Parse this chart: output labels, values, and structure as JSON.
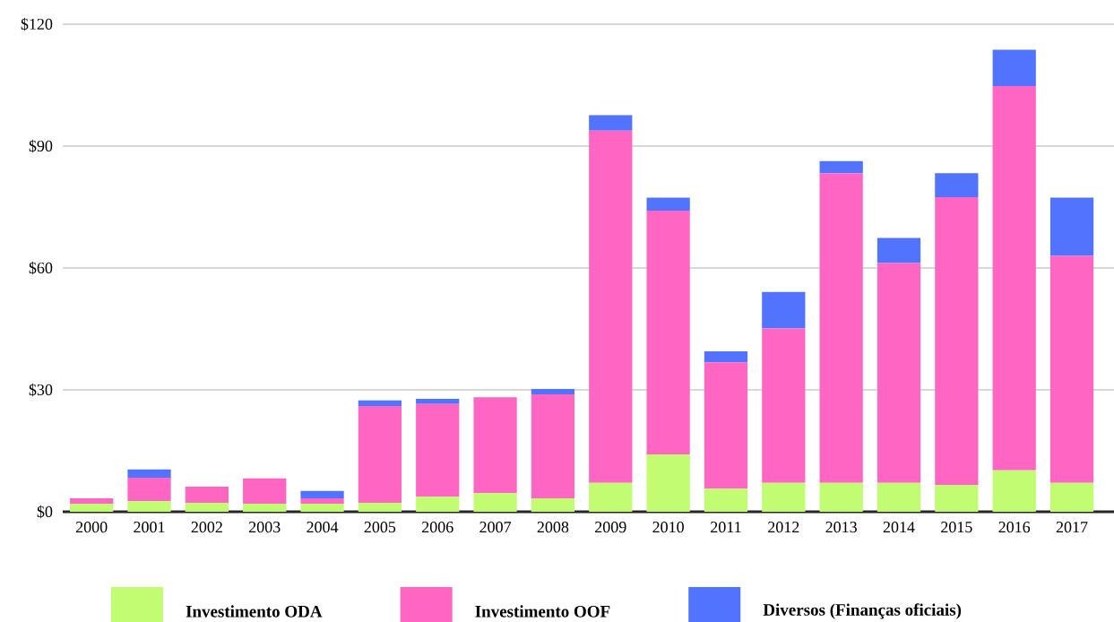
{
  "chart_data": {
    "type": "bar",
    "stacked": true,
    "categories": [
      "2000",
      "2001",
      "2002",
      "2003",
      "2004",
      "2005",
      "2006",
      "2007",
      "2008",
      "2009",
      "2010",
      "2011",
      "2012",
      "2013",
      "2014",
      "2015",
      "2016",
      "2017"
    ],
    "series": [
      {
        "name": "Investimento ODA",
        "color": "#c2fc72",
        "values": [
          2.0,
          2.6,
          2.2,
          2.0,
          2.0,
          2.2,
          3.7,
          4.6,
          3.3,
          7.1,
          14.1,
          5.7,
          7.1,
          7.1,
          7.1,
          6.6,
          10.2,
          7.1
        ]
      },
      {
        "name": "Investimento OOF",
        "color": "#ff66c4",
        "values": [
          1.3,
          5.8,
          4.0,
          6.2,
          1.3,
          23.8,
          22.8,
          23.6,
          25.6,
          86.7,
          60.0,
          31.1,
          38.0,
          76.2,
          54.1,
          70.8,
          94.6,
          55.9
        ]
      },
      {
        "name": "Diversos (Finanças oficiais)",
        "color": "#5273fe",
        "values": [
          0,
          2.0,
          0,
          0,
          1.8,
          1.4,
          1.3,
          0,
          1.3,
          3.8,
          3.2,
          2.7,
          9.0,
          3.0,
          6.2,
          5.9,
          8.9,
          14.3
        ]
      }
    ],
    "ylim": [
      0,
      120
    ],
    "yticks": [
      {
        "value": 0,
        "label": "$0"
      },
      {
        "value": 30,
        "label": "$30"
      },
      {
        "value": 60,
        "label": "$60"
      },
      {
        "value": 90,
        "label": "$90"
      },
      {
        "value": 120,
        "label": "$120"
      }
    ],
    "grid": "y",
    "legend": "bottom"
  }
}
